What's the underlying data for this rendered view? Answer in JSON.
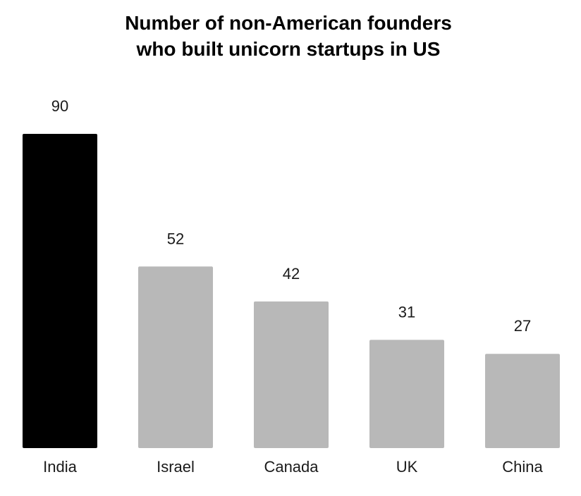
{
  "chart_data": {
    "type": "bar",
    "title_lines": [
      "Number of non-American founders",
      "who built unicorn startups in US"
    ],
    "categories": [
      "India",
      "Israel",
      "Canada",
      "UK",
      "China"
    ],
    "values": [
      90,
      52,
      42,
      31,
      27
    ],
    "colors": [
      "#000000",
      "#b8b8b8",
      "#b8b8b8",
      "#b8b8b8",
      "#b8b8b8"
    ],
    "xlabel": "",
    "ylabel": "",
    "ylim": [
      0,
      90
    ],
    "grid": false,
    "legend": "none"
  }
}
